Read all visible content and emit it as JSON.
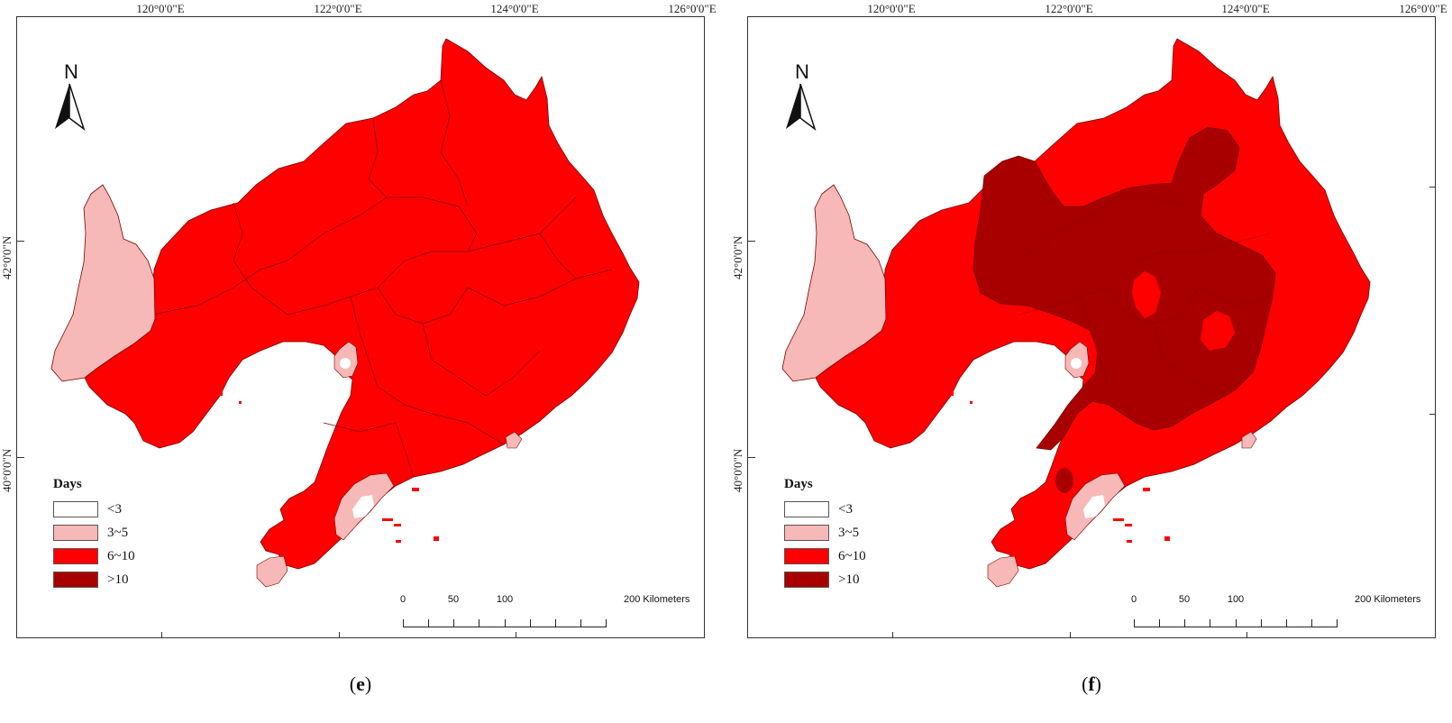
{
  "map_common": {
    "lon_labels": [
      "120°0'0\"E",
      "122°0'0\"E",
      "124°0'0\"E",
      "126°0'0\"E"
    ],
    "lat_labels": [
      "42°0'0\"N",
      "40°0'0\"N"
    ],
    "north_label": "N",
    "legend": {
      "title": "Days",
      "items": [
        {
          "label": "<3",
          "color": "#ffffff"
        },
        {
          "label": "3~5",
          "color": "#f7b9b7"
        },
        {
          "label": "6~10",
          "color": "#ff0000"
        },
        {
          "label": ">10",
          "color": "#a80000"
        }
      ]
    },
    "scale": {
      "ticks": [
        "0",
        "50",
        "100",
        "200 Kilometers"
      ]
    }
  },
  "panels": [
    {
      "id": "e",
      "caption_open": "(",
      "caption_letter": "e",
      "caption_close": ")"
    },
    {
      "id": "f",
      "caption_open": "(",
      "caption_letter": "f",
      "caption_close": ")"
    }
  ],
  "colors": {
    "land_main": "#ff0000",
    "land_light": "#f7b9b7",
    "land_dark": "#a80000",
    "land_white": "#ffffff",
    "boundary": "#7a0000"
  }
}
